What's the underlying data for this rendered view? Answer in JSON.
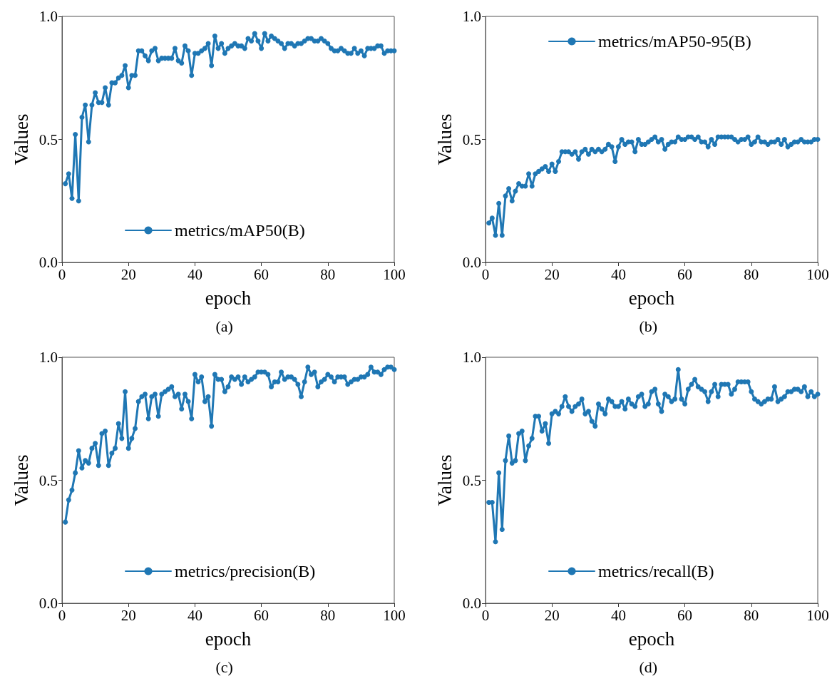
{
  "chart_data": [
    {
      "type": "line",
      "xlabel": "epoch",
      "ylabel": "Values",
      "annotations": [
        "(a)"
      ],
      "legend": "bottom",
      "marker": "circle",
      "line_style": "solid",
      "grid": false,
      "xlim": [
        0,
        100
      ],
      "xticks": [
        0,
        20,
        40,
        60,
        80,
        100
      ],
      "ylim": [
        0,
        1
      ],
      "yticks": [
        {
          "value": 0,
          "label": "0.0"
        },
        {
          "value": 0.5,
          "label": "0.5"
        },
        {
          "value": 1,
          "label": "1.0"
        }
      ],
      "x": [
        1,
        2,
        3,
        4,
        5,
        6,
        7,
        8,
        9,
        10,
        11,
        12,
        13,
        14,
        15,
        16,
        17,
        18,
        19,
        20,
        21,
        22,
        23,
        24,
        25,
        26,
        27,
        28,
        29,
        30,
        31,
        32,
        33,
        34,
        35,
        36,
        37,
        38,
        39,
        40,
        41,
        42,
        43,
        44,
        45,
        46,
        47,
        48,
        49,
        50,
        51,
        52,
        53,
        54,
        55,
        56,
        57,
        58,
        59,
        60,
        61,
        62,
        63,
        64,
        65,
        66,
        67,
        68,
        69,
        70,
        71,
        72,
        73,
        74,
        75,
        76,
        77,
        78,
        79,
        80,
        81,
        82,
        83,
        84,
        85,
        86,
        87,
        88,
        89,
        90,
        91,
        92,
        93,
        94,
        95,
        96,
        97,
        98,
        99,
        100
      ],
      "series": [
        {
          "name": "metrics/mAP50(B)",
          "color": "#1f77b4",
          "values": [
            0.32,
            0.36,
            0.26,
            0.52,
            0.25,
            0.59,
            0.64,
            0.49,
            0.64,
            0.69,
            0.65,
            0.65,
            0.71,
            0.64,
            0.73,
            0.73,
            0.75,
            0.76,
            0.8,
            0.71,
            0.76,
            0.76,
            0.86,
            0.86,
            0.84,
            0.82,
            0.86,
            0.87,
            0.82,
            0.83,
            0.83,
            0.83,
            0.83,
            0.87,
            0.82,
            0.81,
            0.88,
            0.86,
            0.76,
            0.85,
            0.85,
            0.86,
            0.87,
            0.89,
            0.8,
            0.92,
            0.87,
            0.89,
            0.85,
            0.87,
            0.88,
            0.89,
            0.88,
            0.88,
            0.87,
            0.91,
            0.9,
            0.93,
            0.9,
            0.87,
            0.93,
            0.9,
            0.92,
            0.91,
            0.9,
            0.89,
            0.87,
            0.89,
            0.89,
            0.88,
            0.89,
            0.89,
            0.9,
            0.91,
            0.91,
            0.9,
            0.9,
            0.91,
            0.9,
            0.89,
            0.87,
            0.86,
            0.86,
            0.87,
            0.86,
            0.85,
            0.85,
            0.87,
            0.85,
            0.86,
            0.84,
            0.87,
            0.87,
            0.87,
            0.88,
            0.88,
            0.85,
            0.86,
            0.86,
            0.86
          ]
        }
      ]
    },
    {
      "type": "line",
      "xlabel": "epoch",
      "ylabel": "Values",
      "annotations": [
        "(b)"
      ],
      "legend": "top",
      "marker": "circle",
      "line_style": "solid",
      "grid": false,
      "xlim": [
        0,
        100
      ],
      "xticks": [
        0,
        20,
        40,
        60,
        80,
        100
      ],
      "ylim": [
        0,
        1
      ],
      "yticks": [
        {
          "value": 0,
          "label": "0.0"
        },
        {
          "value": 0.5,
          "label": "0.5"
        },
        {
          "value": 1,
          "label": "1.0"
        }
      ],
      "x": [
        1,
        2,
        3,
        4,
        5,
        6,
        7,
        8,
        9,
        10,
        11,
        12,
        13,
        14,
        15,
        16,
        17,
        18,
        19,
        20,
        21,
        22,
        23,
        24,
        25,
        26,
        27,
        28,
        29,
        30,
        31,
        32,
        33,
        34,
        35,
        36,
        37,
        38,
        39,
        40,
        41,
        42,
        43,
        44,
        45,
        46,
        47,
        48,
        49,
        50,
        51,
        52,
        53,
        54,
        55,
        56,
        57,
        58,
        59,
        60,
        61,
        62,
        63,
        64,
        65,
        66,
        67,
        68,
        69,
        70,
        71,
        72,
        73,
        74,
        75,
        76,
        77,
        78,
        79,
        80,
        81,
        82,
        83,
        84,
        85,
        86,
        87,
        88,
        89,
        90,
        91,
        92,
        93,
        94,
        95,
        96,
        97,
        98,
        99,
        100
      ],
      "series": [
        {
          "name": "metrics/mAP50-95(B)",
          "color": "#1f77b4",
          "values": [
            0.16,
            0.18,
            0.11,
            0.24,
            0.11,
            0.27,
            0.3,
            0.25,
            0.29,
            0.32,
            0.31,
            0.31,
            0.36,
            0.31,
            0.36,
            0.37,
            0.38,
            0.39,
            0.37,
            0.4,
            0.37,
            0.41,
            0.45,
            0.45,
            0.45,
            0.44,
            0.45,
            0.42,
            0.45,
            0.46,
            0.44,
            0.46,
            0.45,
            0.46,
            0.45,
            0.46,
            0.48,
            0.47,
            0.41,
            0.47,
            0.5,
            0.48,
            0.49,
            0.49,
            0.45,
            0.5,
            0.48,
            0.48,
            0.49,
            0.5,
            0.51,
            0.49,
            0.5,
            0.46,
            0.48,
            0.49,
            0.49,
            0.51,
            0.5,
            0.5,
            0.51,
            0.51,
            0.5,
            0.51,
            0.49,
            0.49,
            0.47,
            0.5,
            0.48,
            0.51,
            0.51,
            0.51,
            0.51,
            0.51,
            0.5,
            0.49,
            0.5,
            0.5,
            0.51,
            0.48,
            0.49,
            0.51,
            0.49,
            0.49,
            0.48,
            0.49,
            0.49,
            0.5,
            0.48,
            0.5,
            0.47,
            0.48,
            0.49,
            0.49,
            0.5,
            0.49,
            0.49,
            0.49,
            0.5,
            0.5
          ]
        }
      ]
    },
    {
      "type": "line",
      "xlabel": "epoch",
      "ylabel": "Values",
      "annotations": [
        "(c)"
      ],
      "legend": "bottom",
      "marker": "circle",
      "line_style": "solid",
      "grid": false,
      "xlim": [
        0,
        100
      ],
      "xticks": [
        0,
        20,
        40,
        60,
        80,
        100
      ],
      "ylim": [
        0,
        1
      ],
      "yticks": [
        {
          "value": 0,
          "label": "0.0"
        },
        {
          "value": 0.5,
          "label": "0.5"
        },
        {
          "value": 1,
          "label": "1.0"
        }
      ],
      "x": [
        1,
        2,
        3,
        4,
        5,
        6,
        7,
        8,
        9,
        10,
        11,
        12,
        13,
        14,
        15,
        16,
        17,
        18,
        19,
        20,
        21,
        22,
        23,
        24,
        25,
        26,
        27,
        28,
        29,
        30,
        31,
        32,
        33,
        34,
        35,
        36,
        37,
        38,
        39,
        40,
        41,
        42,
        43,
        44,
        45,
        46,
        47,
        48,
        49,
        50,
        51,
        52,
        53,
        54,
        55,
        56,
        57,
        58,
        59,
        60,
        61,
        62,
        63,
        64,
        65,
        66,
        67,
        68,
        69,
        70,
        71,
        72,
        73,
        74,
        75,
        76,
        77,
        78,
        79,
        80,
        81,
        82,
        83,
        84,
        85,
        86,
        87,
        88,
        89,
        90,
        91,
        92,
        93,
        94,
        95,
        96,
        97,
        98,
        99,
        100
      ],
      "series": [
        {
          "name": "metrics/precision(B)",
          "color": "#1f77b4",
          "values": [
            0.33,
            0.42,
            0.46,
            0.53,
            0.62,
            0.55,
            0.58,
            0.57,
            0.63,
            0.65,
            0.56,
            0.69,
            0.7,
            0.56,
            0.61,
            0.63,
            0.73,
            0.67,
            0.86,
            0.63,
            0.67,
            0.71,
            0.82,
            0.84,
            0.85,
            0.75,
            0.84,
            0.85,
            0.76,
            0.85,
            0.86,
            0.87,
            0.88,
            0.84,
            0.85,
            0.79,
            0.85,
            0.82,
            0.75,
            0.93,
            0.9,
            0.92,
            0.82,
            0.84,
            0.72,
            0.93,
            0.91,
            0.91,
            0.86,
            0.88,
            0.92,
            0.91,
            0.92,
            0.89,
            0.92,
            0.9,
            0.91,
            0.92,
            0.94,
            0.94,
            0.94,
            0.93,
            0.88,
            0.9,
            0.9,
            0.94,
            0.91,
            0.92,
            0.92,
            0.91,
            0.89,
            0.84,
            0.9,
            0.96,
            0.93,
            0.94,
            0.88,
            0.9,
            0.91,
            0.93,
            0.92,
            0.9,
            0.92,
            0.92,
            0.92,
            0.89,
            0.9,
            0.91,
            0.91,
            0.92,
            0.92,
            0.93,
            0.96,
            0.94,
            0.94,
            0.93,
            0.95,
            0.96,
            0.96,
            0.95
          ]
        }
      ]
    },
    {
      "type": "line",
      "xlabel": "epoch",
      "ylabel": "Values",
      "annotations": [
        "(d)"
      ],
      "legend": "bottom",
      "marker": "circle",
      "line_style": "solid",
      "grid": false,
      "xlim": [
        0,
        100
      ],
      "xticks": [
        0,
        20,
        40,
        60,
        80,
        100
      ],
      "ylim": [
        0,
        1
      ],
      "yticks": [
        {
          "value": 0,
          "label": "0.0"
        },
        {
          "value": 0.5,
          "label": "0.5"
        },
        {
          "value": 1,
          "label": "1.0"
        }
      ],
      "x": [
        1,
        2,
        3,
        4,
        5,
        6,
        7,
        8,
        9,
        10,
        11,
        12,
        13,
        14,
        15,
        16,
        17,
        18,
        19,
        20,
        21,
        22,
        23,
        24,
        25,
        26,
        27,
        28,
        29,
        30,
        31,
        32,
        33,
        34,
        35,
        36,
        37,
        38,
        39,
        40,
        41,
        42,
        43,
        44,
        45,
        46,
        47,
        48,
        49,
        50,
        51,
        52,
        53,
        54,
        55,
        56,
        57,
        58,
        59,
        60,
        61,
        62,
        63,
        64,
        65,
        66,
        67,
        68,
        69,
        70,
        71,
        72,
        73,
        74,
        75,
        76,
        77,
        78,
        79,
        80,
        81,
        82,
        83,
        84,
        85,
        86,
        87,
        88,
        89,
        90,
        91,
        92,
        93,
        94,
        95,
        96,
        97,
        98,
        99,
        100
      ],
      "series": [
        {
          "name": "metrics/recall(B)",
          "color": "#1f77b4",
          "values": [
            0.41,
            0.41,
            0.25,
            0.53,
            0.3,
            0.58,
            0.68,
            0.57,
            0.58,
            0.69,
            0.7,
            0.58,
            0.64,
            0.67,
            0.76,
            0.76,
            0.7,
            0.73,
            0.65,
            0.77,
            0.78,
            0.77,
            0.8,
            0.84,
            0.8,
            0.78,
            0.8,
            0.81,
            0.83,
            0.77,
            0.78,
            0.74,
            0.72,
            0.81,
            0.79,
            0.77,
            0.83,
            0.82,
            0.8,
            0.8,
            0.82,
            0.79,
            0.83,
            0.81,
            0.8,
            0.84,
            0.85,
            0.8,
            0.81,
            0.86,
            0.87,
            0.81,
            0.78,
            0.85,
            0.84,
            0.82,
            0.83,
            0.95,
            0.83,
            0.81,
            0.87,
            0.89,
            0.91,
            0.88,
            0.87,
            0.86,
            0.82,
            0.86,
            0.89,
            0.84,
            0.89,
            0.89,
            0.89,
            0.85,
            0.87,
            0.9,
            0.9,
            0.9,
            0.9,
            0.86,
            0.83,
            0.82,
            0.81,
            0.82,
            0.83,
            0.83,
            0.88,
            0.82,
            0.83,
            0.84,
            0.86,
            0.86,
            0.87,
            0.87,
            0.86,
            0.88,
            0.84,
            0.86,
            0.84,
            0.85
          ]
        }
      ]
    }
  ]
}
